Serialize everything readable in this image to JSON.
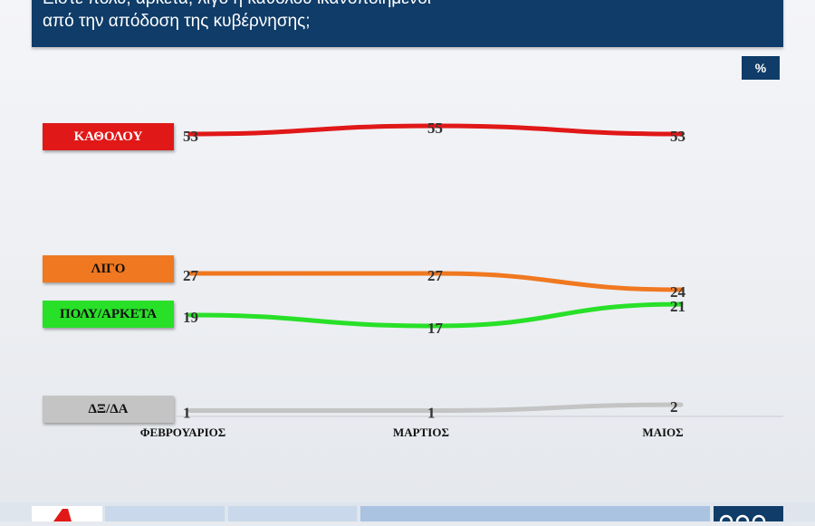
{
  "title_lines": [
    "Είστε πολύ, αρκετά, λίγο ή καθόλου ικανοποιημένοι",
    "από την απόδοση της κυβέρνησης;"
  ],
  "unit": "%",
  "colors": {
    "title_bg": "#0f3c68",
    "kathólou": "#e01818",
    "ligo": "#f07820",
    "poly_arketa": "#28e028",
    "dx_da": "#c4c4c4"
  },
  "chart_data": {
    "type": "line",
    "title": "Είστε πολύ, αρκετά, λίγο ή καθόλου ικανοποιημένοι από την απόδοση της κυβέρνησης;",
    "categories": [
      "ΦΕΒΡΟΥΑΡΙΟΣ",
      "ΜΑΡΤΙΟΣ",
      "ΜΑΙΟΣ"
    ],
    "unit": "%",
    "grid": false,
    "legend_placement": "left",
    "series": [
      {
        "name": "ΚΑΘΟΛΟΥ",
        "values": [
          53,
          55,
          53
        ],
        "color": "#e01818",
        "label_color": "#ffffff"
      },
      {
        "name": "ΛΙΓΟ",
        "values": [
          27,
          27,
          24
        ],
        "color": "#f07820",
        "label_color": "#111111"
      },
      {
        "name": "ΠΟΛΥ/ΑΡΚΕΤΑ",
        "values": [
          19,
          17,
          21
        ],
        "color": "#28e028",
        "label_color": "#111111"
      },
      {
        "name": "ΔΞ/ΔΑ",
        "values": [
          1,
          1,
          2
        ],
        "color": "#c4c4c4",
        "label_color": "#111111"
      }
    ]
  }
}
